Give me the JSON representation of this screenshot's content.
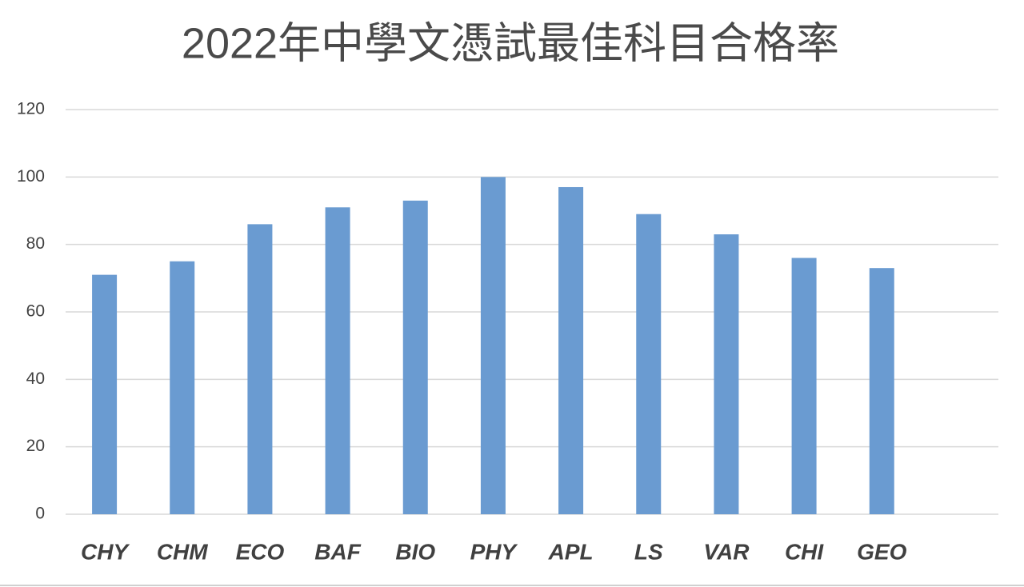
{
  "chart_data": {
    "type": "bar",
    "title": "2022年中學文憑試最佳科目合格率",
    "categories": [
      "CHY",
      "CHM",
      "ECO",
      "BAF",
      "BIO",
      "PHY",
      "APL",
      "LS",
      "VAR",
      "CHI",
      "GEO",
      null
    ],
    "values": [
      71,
      75,
      86,
      91,
      93,
      100,
      97,
      89,
      83,
      76,
      73,
      null
    ],
    "color": "#6a9bd1",
    "ylim": [
      0,
      120
    ],
    "yticks": [
      0,
      20,
      40,
      60,
      80,
      100,
      120
    ],
    "grid": true
  }
}
